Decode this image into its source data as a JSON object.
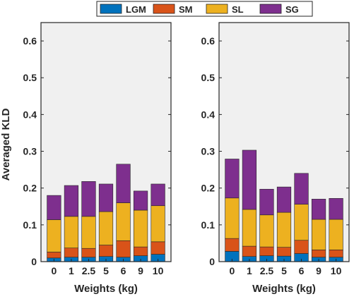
{
  "ylabel": "Averaged KLD",
  "xlabel": "Weights (kg)",
  "legend": [
    {
      "label": "LGM",
      "color": "#0072BD"
    },
    {
      "label": "SM",
      "color": "#D95319"
    },
    {
      "label": "SL",
      "color": "#EDB120"
    },
    {
      "label": "SG",
      "color": "#7E2F8E"
    }
  ],
  "chart_data": [
    {
      "type": "bar",
      "stacked": true,
      "categories": [
        "0",
        "1",
        "2.5",
        "5",
        "6",
        "9",
        "10"
      ],
      "xlabel": "Weights (kg)",
      "ylabel": "Averaged KLD",
      "ylim": [
        0,
        0.65
      ],
      "yticks": [
        0,
        0.1,
        0.2,
        0.3,
        0.4,
        0.5,
        0.6
      ],
      "ytick_labels": [
        "0",
        "0.1",
        "0.2",
        "0.3",
        "0.4",
        "0.5",
        "0.6"
      ],
      "series": [
        {
          "name": "LGM",
          "values": [
            0.01,
            0.012,
            0.012,
            0.014,
            0.012,
            0.016,
            0.02
          ]
        },
        {
          "name": "SM",
          "values": [
            0.016,
            0.025,
            0.024,
            0.031,
            0.045,
            0.024,
            0.034
          ]
        },
        {
          "name": "SL",
          "values": [
            0.088,
            0.086,
            0.087,
            0.091,
            0.103,
            0.1,
            0.098
          ]
        },
        {
          "name": "SG",
          "values": [
            0.066,
            0.084,
            0.095,
            0.075,
            0.105,
            0.052,
            0.059
          ]
        }
      ]
    },
    {
      "type": "bar",
      "stacked": true,
      "categories": [
        "0",
        "1",
        "2.5",
        "5",
        "6",
        "9",
        "10"
      ],
      "xlabel": "Weights (kg)",
      "ylabel": "",
      "ylim": [
        0,
        0.65
      ],
      "yticks": [
        0,
        0.1,
        0.2,
        0.3,
        0.4,
        0.5,
        0.6
      ],
      "ytick_labels": [
        "0",
        "0.1",
        "0.2",
        "0.3",
        "0.4",
        "0.5",
        "0.6"
      ],
      "series": [
        {
          "name": "LGM",
          "values": [
            0.028,
            0.014,
            0.016,
            0.015,
            0.022,
            0.012,
            0.012
          ]
        },
        {
          "name": "SM",
          "values": [
            0.035,
            0.028,
            0.024,
            0.024,
            0.036,
            0.02,
            0.02
          ]
        },
        {
          "name": "SL",
          "values": [
            0.11,
            0.1,
            0.087,
            0.095,
            0.098,
            0.083,
            0.083
          ]
        },
        {
          "name": "SG",
          "values": [
            0.106,
            0.161,
            0.07,
            0.069,
            0.084,
            0.055,
            0.057
          ]
        }
      ]
    }
  ]
}
